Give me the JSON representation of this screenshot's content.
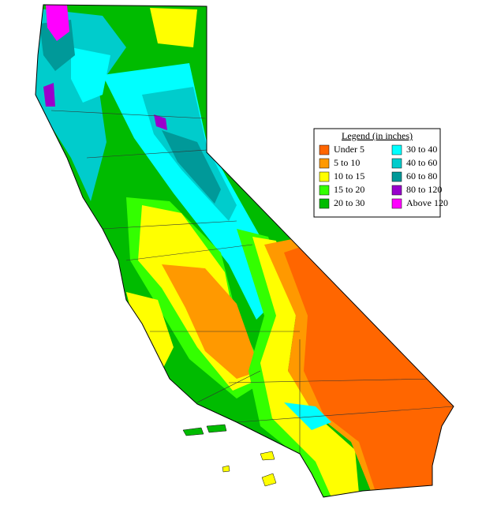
{
  "legend": {
    "title": "Legend (in inches)",
    "items": [
      {
        "label": "Under 5",
        "color": "#ff6600"
      },
      {
        "label": "5 to 10",
        "color": "#ff9900"
      },
      {
        "label": "10 to 15",
        "color": "#ffff00"
      },
      {
        "label": "15 to 20",
        "color": "#33ff00"
      },
      {
        "label": "20 to 30",
        "color": "#00bb00"
      },
      {
        "label": "30 to 40",
        "color": "#00ffff"
      },
      {
        "label": "40 to 60",
        "color": "#00cccc"
      },
      {
        "label": "60 to 80",
        "color": "#009999"
      },
      {
        "label": "80 to 120",
        "color": "#9900cc"
      },
      {
        "label": "Above 120",
        "color": "#ff00ff"
      }
    ]
  }
}
